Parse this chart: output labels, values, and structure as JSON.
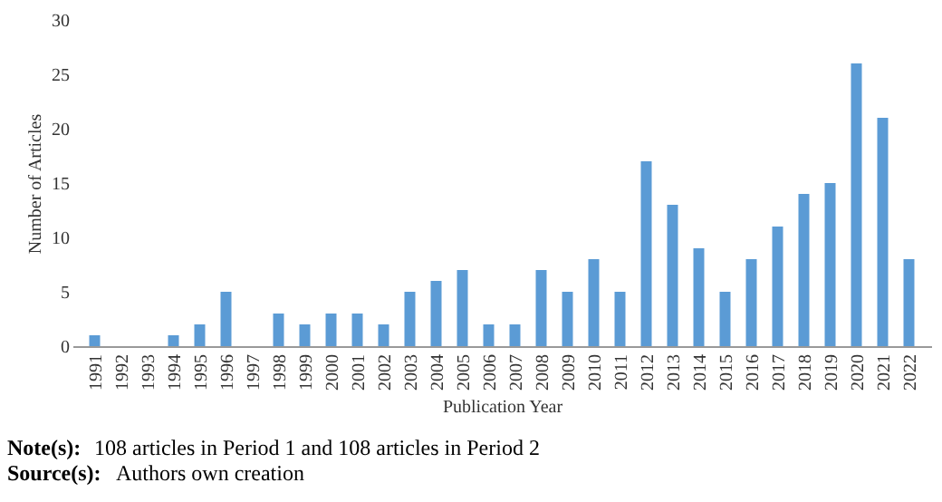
{
  "chart_data": {
    "type": "bar",
    "xlabel": "Publication Year",
    "ylabel": "Number of Articles",
    "categories": [
      "1991",
      "1992",
      "1993",
      "1994",
      "1995",
      "1996",
      "1997",
      "1998",
      "1999",
      "2000",
      "2001",
      "2002",
      "2003",
      "2004",
      "2005",
      "2006",
      "2007",
      "2008",
      "2009",
      "2010",
      "2011",
      "2012",
      "2013",
      "2014",
      "2015",
      "2016",
      "2017",
      "2018",
      "2019",
      "2020",
      "2021",
      "2022"
    ],
    "values": [
      1,
      0,
      0,
      1,
      2,
      5,
      0,
      3,
      2,
      3,
      3,
      2,
      5,
      6,
      7,
      2,
      2,
      7,
      5,
      8,
      5,
      17,
      13,
      9,
      5,
      8,
      11,
      14,
      15,
      26,
      21,
      8
    ],
    "color": "#5b9bd5",
    "ylim": [
      0,
      30
    ],
    "yticks": [
      0,
      5,
      10,
      15,
      20,
      25,
      30
    ],
    "grid": false,
    "annotations": [
      "Note(s): 108 articles in Period 1 and 108 articles in Period 2",
      "Source(s): Authors own creation"
    ]
  }
}
